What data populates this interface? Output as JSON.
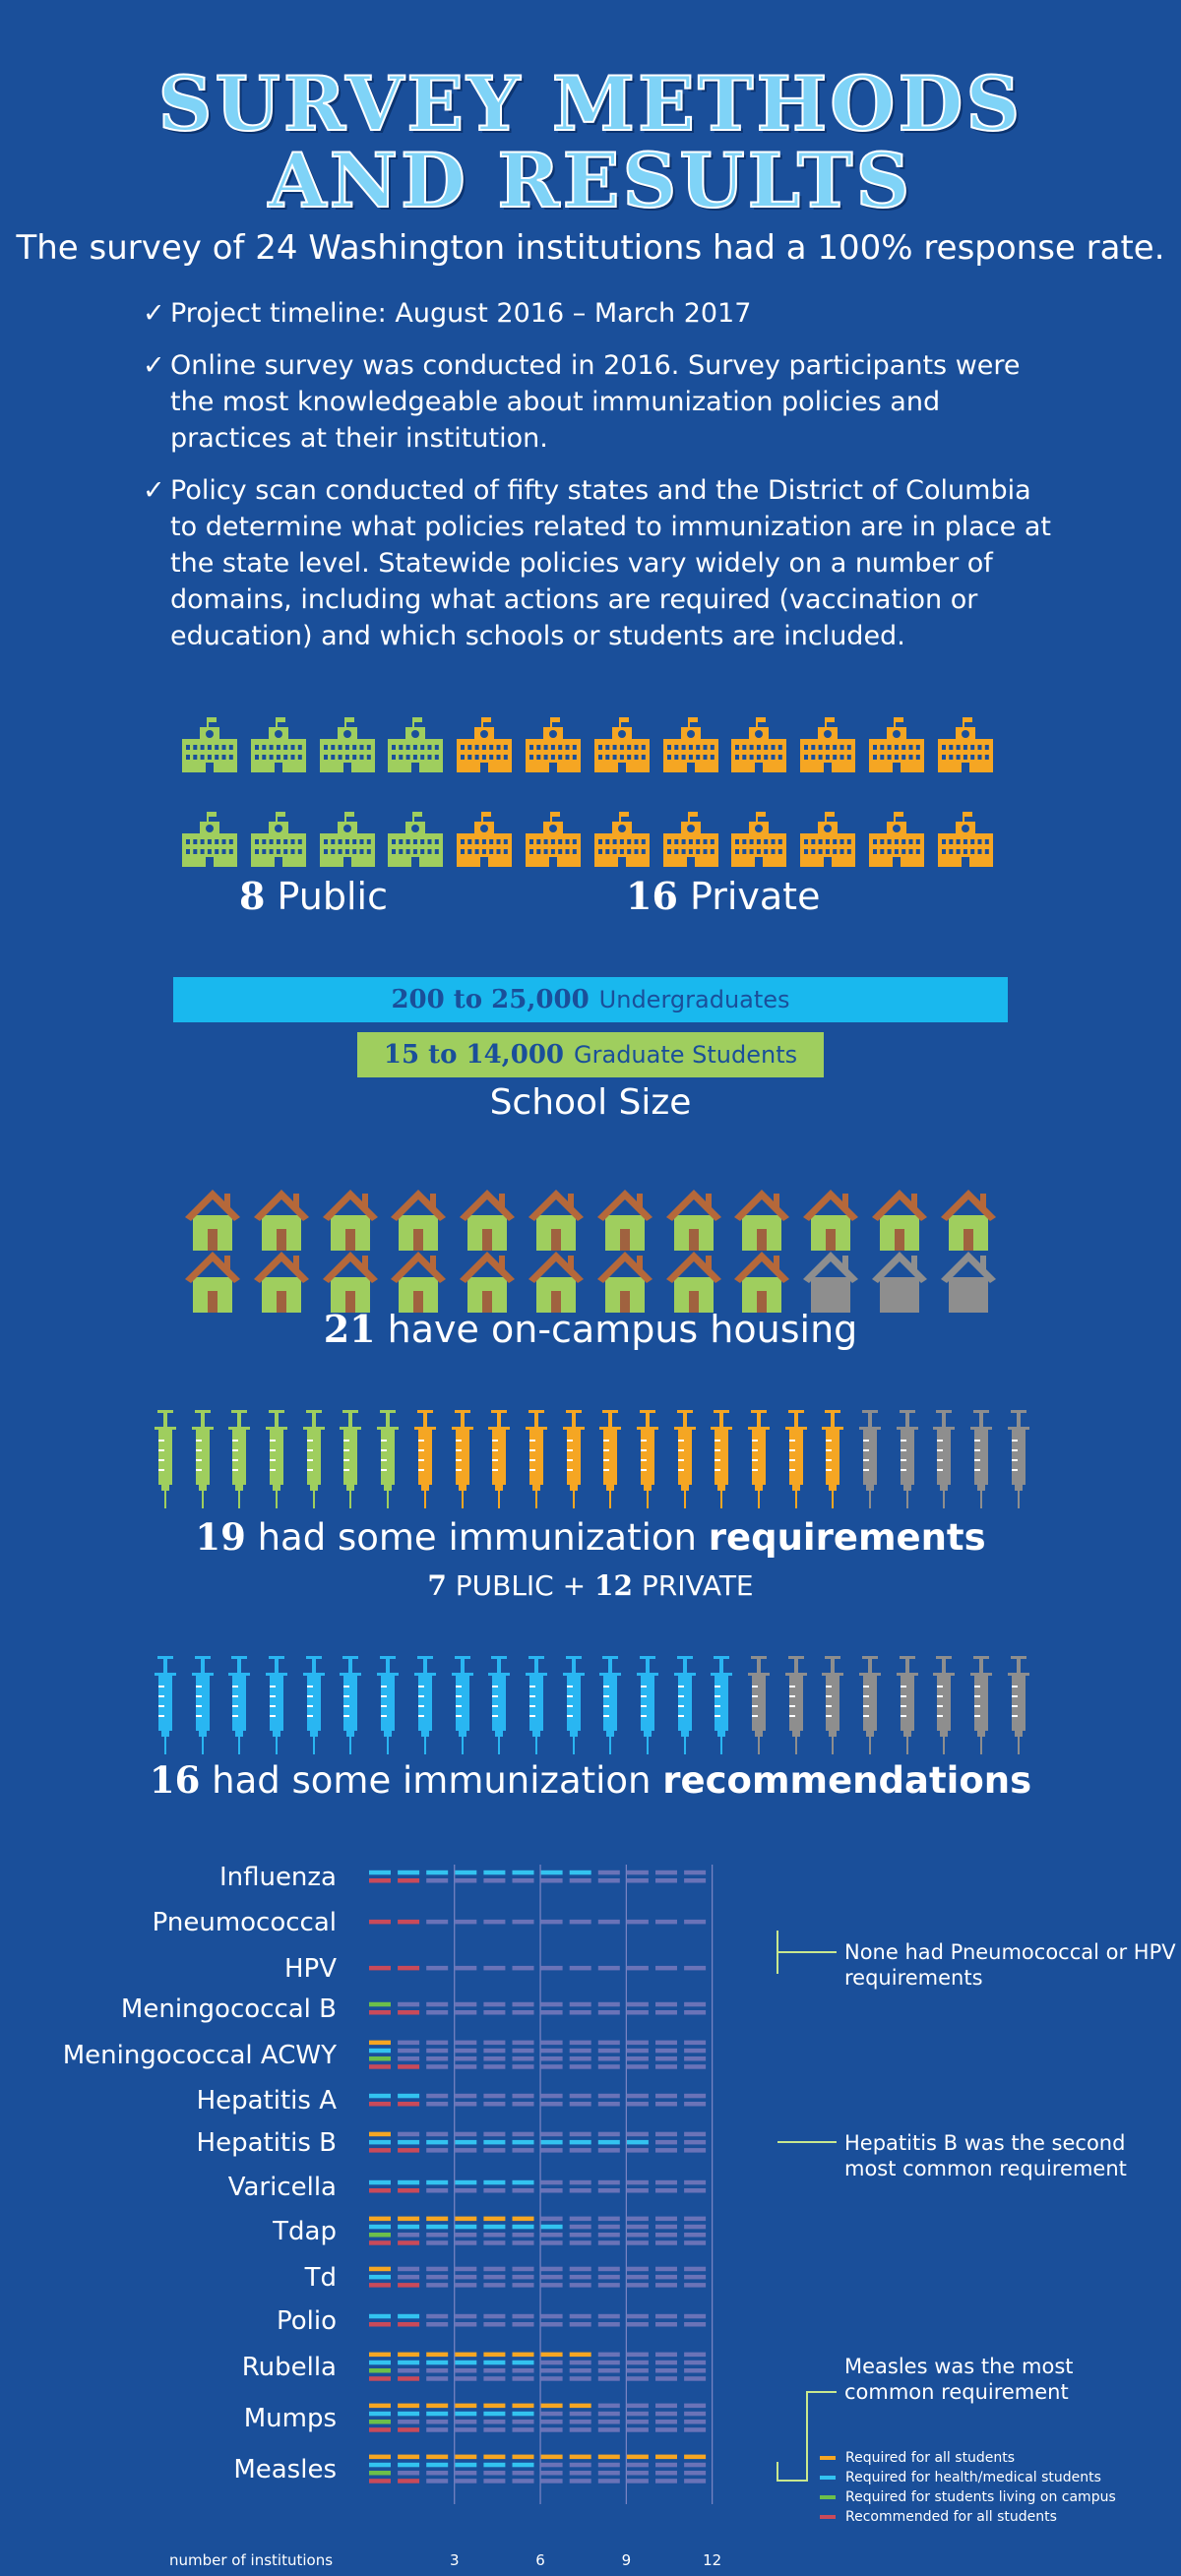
{
  "title": {
    "line1": "SURVEY METHODS",
    "line2": "AND RESULTS"
  },
  "subtitle": "The survey of 24 Washington institutions had a 100% response rate.",
  "bullets": {
    "check": "✓",
    "items": [
      "Project timeline: August 2016 – March 2017",
      "Online survey was conducted in 2016. Survey participants were the most knowledgeable about immunization policies and practices at their institution.",
      "Policy scan conducted of fifty states and the District of Columbia to determine what policies related to immunization are in place at the state level. Statewide policies vary widely on a number of domains, including what actions are required (vaccination or education) and which schools or students are included."
    ]
  },
  "institutions": {
    "public_count": 8,
    "private_count": 16,
    "public_num": "8",
    "public_label": "Public",
    "private_num": "16",
    "private_label": "Private"
  },
  "school_size": {
    "undergrad_range": "200 to 25,000",
    "undergrad_label": "Undergraduates",
    "grad_range": "15 to 14,000",
    "grad_label": "Graduate Students",
    "heading": "School Size"
  },
  "housing": {
    "count": 21,
    "total": 24,
    "num": "21",
    "text": "have on-campus housing"
  },
  "requirements": {
    "public": 7,
    "private": 12,
    "total": 24,
    "num": "19",
    "text": "had some immunization",
    "bold": "requirements",
    "public_num": "7",
    "public_label": "PUBLIC",
    "plus": "+",
    "private_num": "12",
    "private_label": "PRIVATE"
  },
  "recommendations": {
    "count": 16,
    "total": 24,
    "num": "16",
    "text": "had some immunization",
    "bold": "recommendations"
  },
  "colors": {
    "background": "#1a4f9a",
    "public": "#9fce5e",
    "private": "#f5a623",
    "grey": "#8e8e8e",
    "blue": "#29b6f2",
    "req_all": "#f5a623",
    "req_health": "#33c3f0",
    "req_campus": "#6cbf4a",
    "rec_all": "#c94a5a",
    "empty": "#6a73b8"
  },
  "chart_data": {
    "type": "bar",
    "max_institutions": 12,
    "xlabel": "number of institutions",
    "xticks": [
      3,
      6,
      9,
      12
    ],
    "categories": [
      "Influenza",
      "Pneumococcal",
      "HPV",
      "Meningococcal B",
      "Meningococcal ACWY",
      "Hepatitis A",
      "Hepatitis B",
      "Varicella",
      "Tdap",
      "Td",
      "Polio",
      "Rubella",
      "Mumps",
      "Measles"
    ],
    "series": [
      {
        "name": "Required for all students",
        "values": [
          0,
          0,
          0,
          0,
          1,
          0,
          1,
          0,
          6,
          1,
          0,
          8,
          8,
          12
        ]
      },
      {
        "name": "Required for health/medical students",
        "values": [
          8,
          0,
          0,
          0,
          1,
          2,
          10,
          6,
          7,
          1,
          2,
          6,
          6,
          6
        ]
      },
      {
        "name": "Required for students living on campus",
        "values": [
          0,
          0,
          0,
          1,
          1,
          0,
          0,
          0,
          1,
          0,
          0,
          1,
          1,
          1
        ]
      },
      {
        "name": "Recommended for all students",
        "values": [
          2,
          2,
          2,
          2,
          2,
          2,
          2,
          2,
          2,
          2,
          2,
          2,
          2,
          2
        ]
      }
    ]
  },
  "annotations": {
    "pneumo_hpv": "None had Pneumococcal or HPV requirements",
    "hepb": "Hepatitis B was the second most common requirement",
    "measles": "Measles was the most common requirement"
  }
}
